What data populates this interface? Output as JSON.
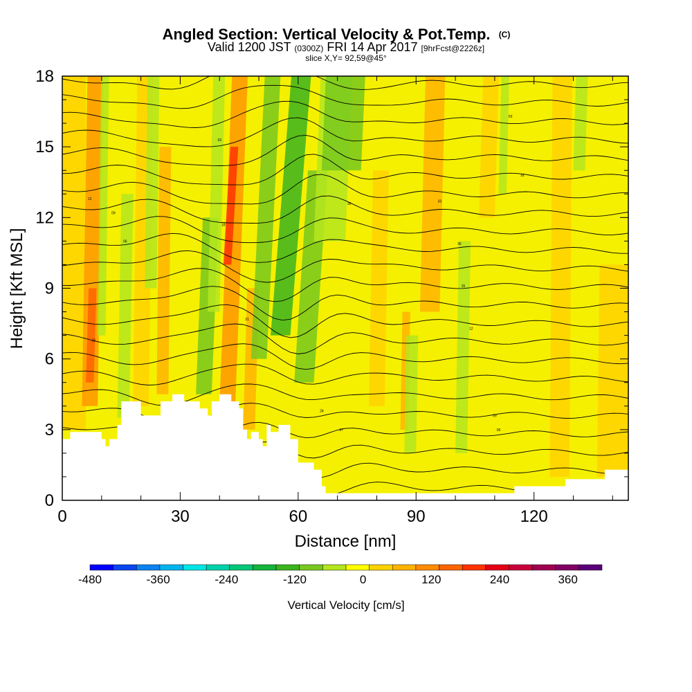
{
  "header": {
    "title": "Angled Section: Vertical Velocity & Pot.Temp.",
    "copyright": "(C)",
    "valid_prefix": "Valid 1200 JST",
    "valid_utc": "(0300Z)",
    "valid_date": "FRI 14 Apr 2017",
    "forecast": "[9hrFcst@2226z]",
    "slice": "slice X,Y= 92,59@45°"
  },
  "chart_data": {
    "type": "heatmap",
    "xlabel": "Distance [nm]",
    "ylabel": "Height [Kft MSL]",
    "xlim": [
      0,
      144
    ],
    "ylim": [
      0,
      18
    ],
    "x_ticks": [
      "0",
      "30",
      "60",
      "90",
      "120"
    ],
    "y_ticks": [
      "0",
      "3",
      "6",
      "9",
      "12",
      "15",
      "18"
    ],
    "colorbar": {
      "label": "Vertical Velocity [cm/s]",
      "range": [
        -480,
        420
      ],
      "tick_labels": [
        "-480",
        "-360",
        "-240",
        "-120",
        "0",
        "120",
        "240",
        "360"
      ],
      "colors": [
        "#0000ff",
        "#0a46f0",
        "#0a82f0",
        "#00b4f0",
        "#00e6e6",
        "#00d2aa",
        "#00c878",
        "#14b43c",
        "#3cb41e",
        "#78c81e",
        "#b4e61e",
        "#ffff00",
        "#ffd200",
        "#ffb400",
        "#ff8c00",
        "#ff6400",
        "#ff3200",
        "#e60014",
        "#c8003c",
        "#a00050",
        "#820064",
        "#5a0078"
      ]
    },
    "terrain": {
      "x": [
        0,
        2,
        5,
        8,
        10,
        11,
        12,
        13,
        14,
        15,
        18,
        20,
        23,
        25,
        26,
        28,
        30,
        31,
        33,
        35,
        36,
        37,
        38,
        40,
        42,
        43,
        45,
        46,
        47,
        48,
        49,
        50,
        51,
        52,
        53,
        55,
        58,
        60,
        62,
        64,
        66,
        67,
        68,
        70,
        75,
        80,
        90,
        100,
        105,
        110,
        114,
        115,
        120,
        125,
        128,
        130,
        135,
        138,
        140,
        144
      ],
      "y": [
        2.6,
        2.9,
        2.9,
        2.9,
        2.6,
        2.3,
        2.6,
        2.6,
        3.2,
        4.2,
        4.2,
        3.6,
        3.6,
        4.2,
        4.2,
        4.5,
        4.5,
        4.2,
        4.2,
        3.9,
        3.9,
        3.6,
        4.2,
        4.5,
        4.5,
        4.2,
        3.9,
        3.0,
        2.6,
        2.9,
        2.9,
        2.6,
        2.3,
        3.2,
        2.9,
        3.2,
        2.6,
        1.6,
        1.6,
        1.3,
        0.6,
        0.3,
        0.3,
        0.3,
        0.3,
        0.3,
        0.3,
        0.3,
        0.3,
        0.3,
        0.3,
        0.6,
        0.6,
        0.6,
        0.9,
        0.9,
        0.9,
        1.3,
        1.3,
        1.3
      ]
    },
    "potential_temperature_labels": [
      "15",
      "12",
      "09",
      "06",
      "03",
      "18",
      "21",
      "24",
      "27",
      "30",
      "33",
      "36"
    ]
  }
}
